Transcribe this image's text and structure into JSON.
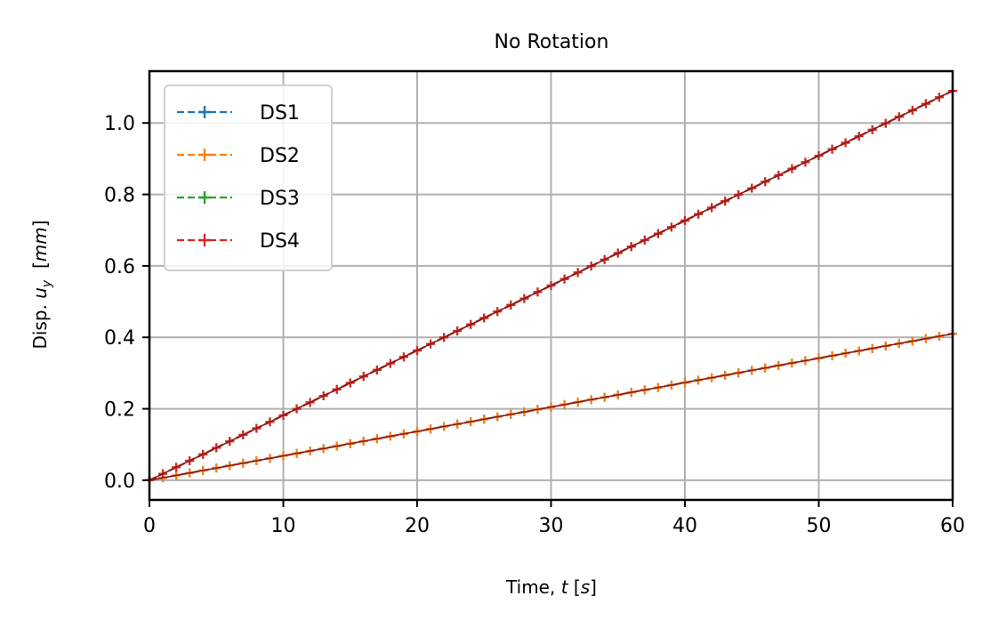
{
  "chart_data": {
    "type": "line",
    "title": "No Rotation",
    "xlabel": {
      "prefix": "Time, ",
      "var": "t",
      "unit_open": " [",
      "unit": "s",
      "unit_close": "]"
    },
    "ylabel": {
      "prefix": "Disp. ",
      "var": "u",
      "sub": "y",
      "unit_open": "  [",
      "unit": "mm",
      "unit_close": "]"
    },
    "xlim": [
      0,
      60
    ],
    "ylim": [
      -0.055,
      1.145
    ],
    "xticks": [
      0,
      10,
      20,
      30,
      40,
      50,
      60
    ],
    "xtick_labels": [
      "0",
      "10",
      "20",
      "30",
      "40",
      "50",
      "60"
    ],
    "yticks": [
      0.0,
      0.2,
      0.4,
      0.6,
      0.8,
      1.0
    ],
    "ytick_labels": [
      "0.0",
      "0.2",
      "0.4",
      "0.6",
      "0.8",
      "1.0"
    ],
    "grid": true,
    "legend_position": "top-left",
    "marker": "+",
    "line_style": "dashed",
    "x_start": 0,
    "x_end": 60,
    "marker_count": 61,
    "series": [
      {
        "name": "DS1",
        "color": "#1f77b4",
        "y_start": 0.0,
        "y_end": 0.41
      },
      {
        "name": "DS2",
        "color": "#ff7f0e",
        "y_start": 0.0,
        "y_end": 0.41
      },
      {
        "name": "DS3",
        "color": "#2ca02c",
        "y_start": 0.0,
        "y_end": 1.09
      },
      {
        "name": "DS4",
        "color": "#d62728",
        "y_start": 0.0,
        "y_end": 1.09
      }
    ],
    "reference_lines": [
      {
        "color": "#8b1a1a",
        "y_start": 0.0,
        "y_end": 0.41
      },
      {
        "color": "#8b1a1a",
        "y_start": 0.0,
        "y_end": 1.09
      }
    ]
  }
}
